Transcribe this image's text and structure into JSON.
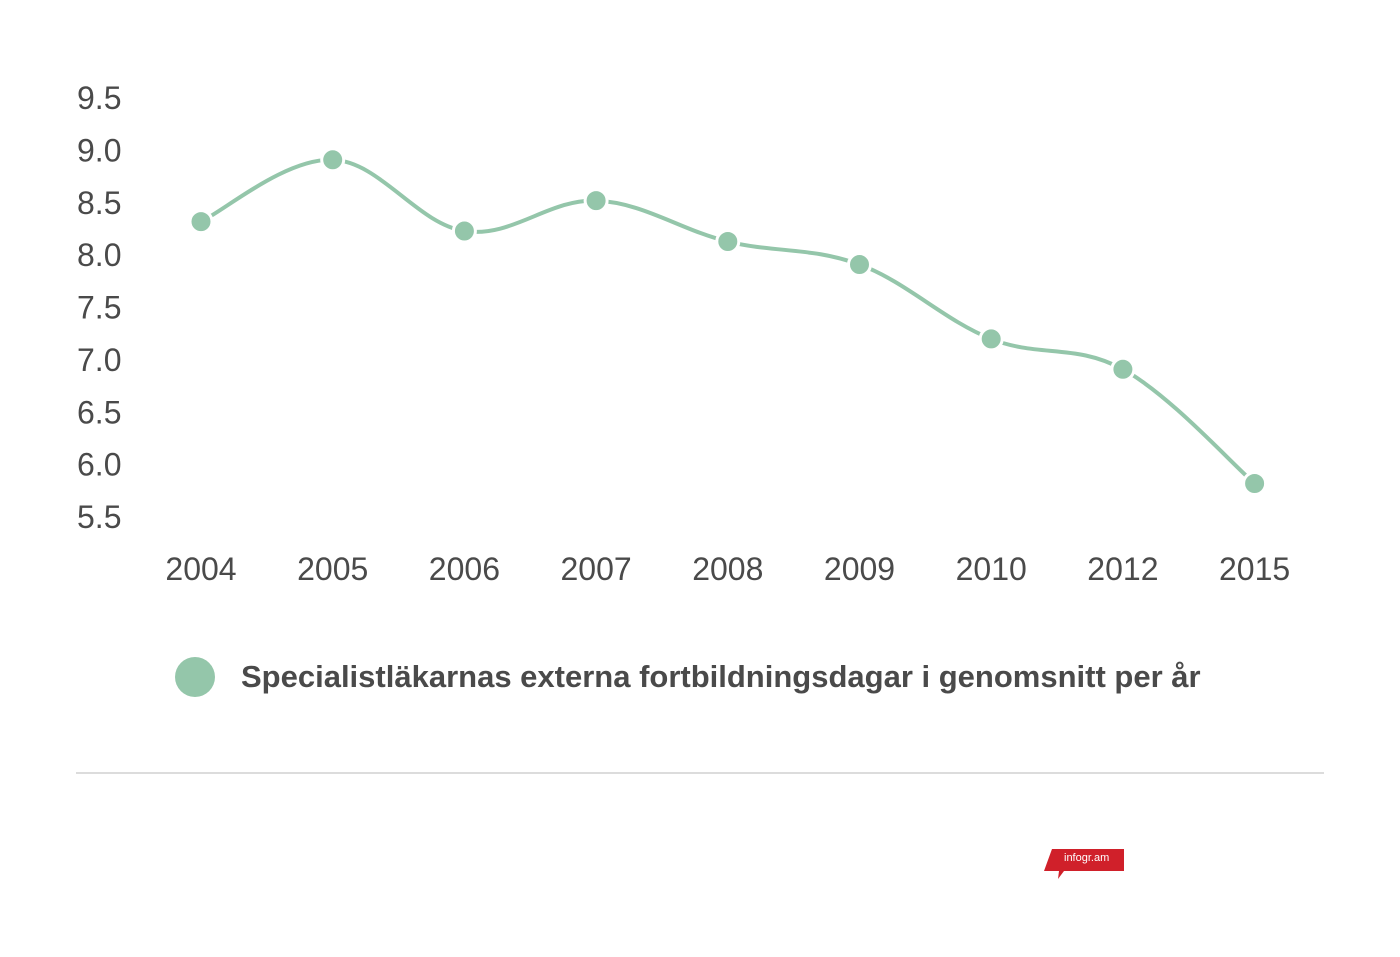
{
  "chart_data": {
    "type": "line",
    "categories": [
      "2004",
      "2005",
      "2006",
      "2007",
      "2008",
      "2009",
      "2010",
      "2012",
      "2015"
    ],
    "series": [
      {
        "name": "Specialistläkarnas externa fortbildningsdagar i genomsnitt per år",
        "values": [
          8.32,
          8.91,
          8.23,
          8.52,
          8.13,
          7.91,
          7.2,
          6.91,
          5.82
        ],
        "color": "#94c6aa"
      }
    ],
    "yticks": [
      "9.5",
      "9.0",
      "8.5",
      "8.0",
      "7.5",
      "7.0",
      "6.5",
      "6.0",
      "5.5"
    ],
    "ylim": [
      5.5,
      9.5
    ],
    "grid": false,
    "legend_position": "bottom",
    "title": "",
    "xlabel": "",
    "ylabel": ""
  },
  "legend": {
    "label": "Specialistläkarnas externa fortbildningsdagar i genomsnitt per år"
  },
  "branding": {
    "badge_text": "infogr.am",
    "badge_color": "#d0202a"
  }
}
